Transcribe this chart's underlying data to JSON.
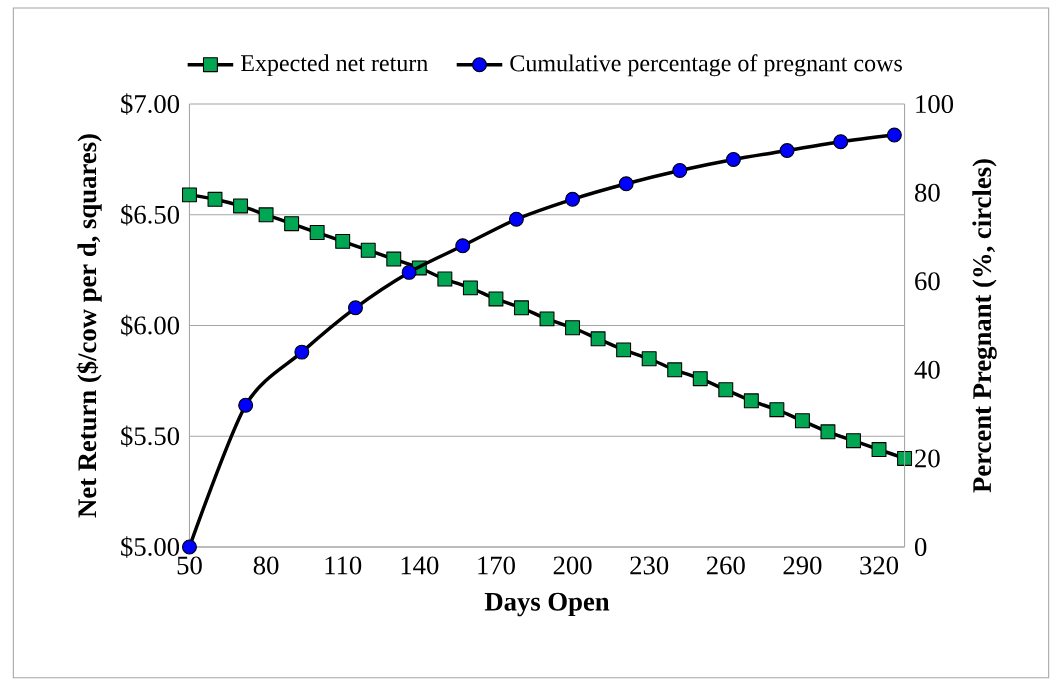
{
  "chart_data": {
    "type": "line",
    "xlabel": "Days Open",
    "ylabel": "Net Return ($/cow per d, squares)",
    "y2label": "Percent Pregnant (%, circles)",
    "xlim": [
      50,
      330
    ],
    "xticks": [
      50,
      80,
      110,
      140,
      170,
      200,
      230,
      260,
      290,
      320
    ],
    "ylim": [
      5,
      7
    ],
    "yticks": [
      {
        "value": 5,
        "label": "$5.00"
      },
      {
        "value": 5.5,
        "label": "$5.50"
      },
      {
        "value": 6,
        "label": "$6.00"
      },
      {
        "value": 6.5,
        "label": "$6.50"
      },
      {
        "value": 7,
        "label": "$7.00"
      }
    ],
    "y2lim": [
      0,
      100
    ],
    "y2ticks": [
      0,
      20,
      40,
      60,
      80,
      100
    ],
    "grid": "y",
    "legend": "top",
    "line_style": "solid",
    "series": [
      {
        "name": "Expected net return",
        "color": "#00a651",
        "marker": "square",
        "x": [
          50,
          60,
          70,
          80,
          90,
          100,
          110,
          120,
          130,
          140,
          150,
          160,
          170,
          180,
          190,
          200,
          210,
          220,
          230,
          240,
          250,
          260,
          270,
          280,
          290,
          300,
          310,
          320,
          330
        ],
        "values": [
          6.59,
          6.57,
          6.54,
          6.5,
          6.46,
          6.42,
          6.38,
          6.34,
          6.3,
          6.26,
          6.21,
          6.17,
          6.12,
          6.08,
          6.03,
          5.99,
          5.94,
          5.89,
          5.85,
          5.8,
          5.76,
          5.71,
          5.66,
          5.62,
          5.57,
          5.52,
          5.48,
          5.44,
          5.4
        ]
      },
      {
        "name": "Cumulative percentage of pregnant cows",
        "color": "#0000ff",
        "marker": "circle",
        "axis": "y2",
        "x": [
          50,
          72,
          94,
          115,
          136,
          157,
          178,
          200,
          221,
          242,
          263,
          284,
          305,
          326
        ],
        "values": [
          0,
          32,
          44,
          54,
          62,
          68,
          74,
          78.5,
          82,
          85,
          87.5,
          89.5,
          91.5,
          93
        ]
      }
    ]
  }
}
